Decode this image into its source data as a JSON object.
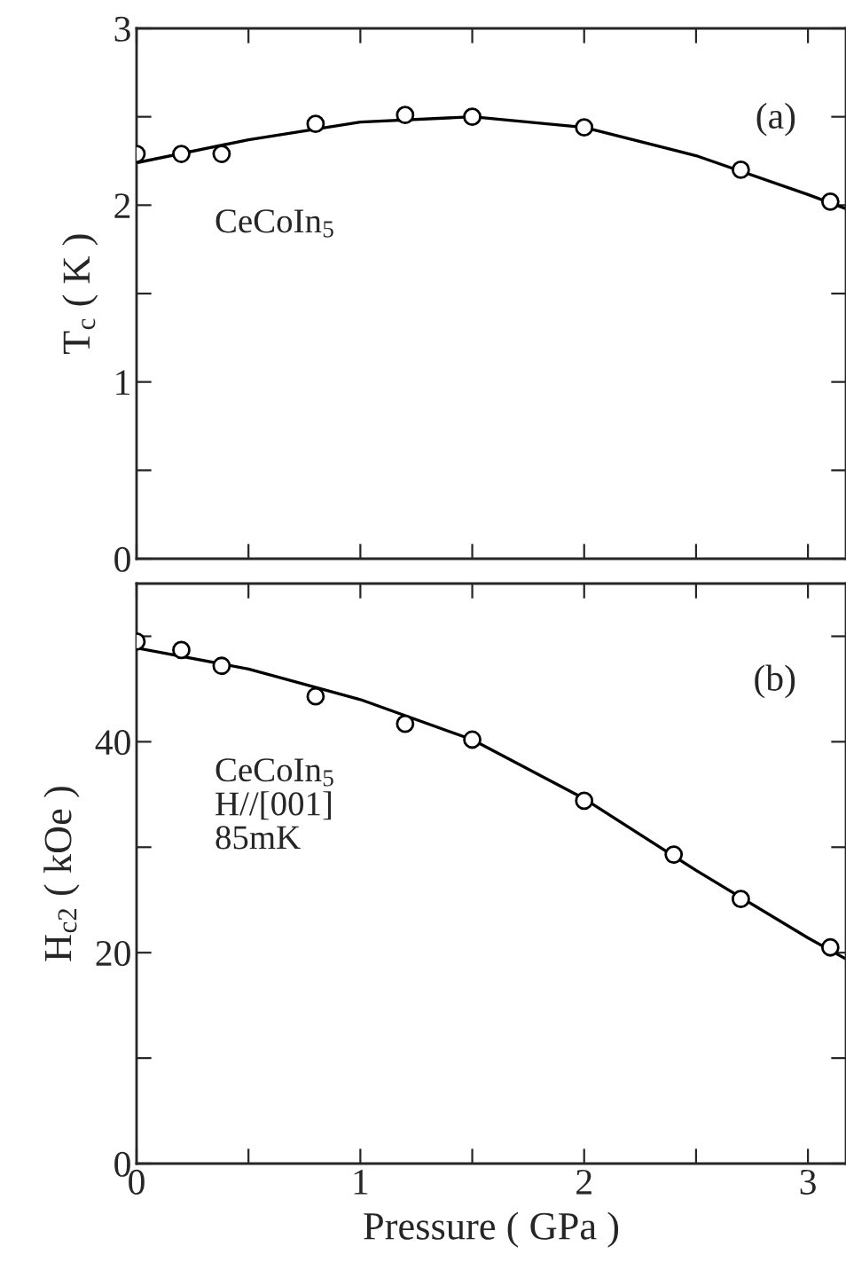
{
  "chart_data": [
    {
      "type": "scatter",
      "ylabel": "T$_{c}$ ( K )",
      "annotations": [
        "(a)",
        "CeCoIn$_{5}$"
      ],
      "xlim": [
        0,
        3.17
      ],
      "xticks": [
        {
          "value": 0,
          "label": null
        },
        {
          "value": 0.5,
          "label": null
        },
        {
          "value": 1,
          "label": null
        },
        {
          "value": 1.5,
          "label": null
        },
        {
          "value": 2,
          "label": null
        },
        {
          "value": 2.5,
          "label": null
        },
        {
          "value": 3,
          "label": null
        }
      ],
      "ylim": [
        0,
        3
      ],
      "yticks": [
        0,
        {
          "value": 0.5,
          "label": null
        },
        1,
        {
          "value": 1.5,
          "label": null
        },
        2,
        {
          "value": 2.5,
          "label": null
        },
        3
      ],
      "tick_labels": "y",
      "grid": false,
      "legend": false,
      "series": [
        {
          "marker": "circle",
          "color": "#000000",
          "x": [
            0,
            0.2,
            0.38,
            0.8,
            1.2,
            1.5,
            2.0,
            2.7,
            3.1
          ],
          "values": [
            2.29,
            2.29,
            2.29,
            2.46,
            2.51,
            2.5,
            2.44,
            2.2,
            2.02
          ]
        },
        {
          "type": "line",
          "line_style": "solid",
          "color": "#000000",
          "x": [
            0,
            0.5,
            1.0,
            1.5,
            2.0,
            2.5,
            3.0,
            3.17
          ],
          "values": [
            2.24,
            2.37,
            2.47,
            2.5,
            2.44,
            2.28,
            2.06,
            1.98
          ]
        }
      ]
    },
    {
      "type": "scatter",
      "xlabel": "Pressure ( GPa )",
      "ylabel": "H$_{c2}$ ( kOe )",
      "annotations": [
        "(b)",
        "CeCoIn$_{5}$\nH//[001]\n85mK"
      ],
      "xlim": [
        0,
        3.17
      ],
      "xticks": [
        0,
        {
          "value": 0.5,
          "label": null
        },
        1,
        {
          "value": 1.5,
          "label": null
        },
        2,
        {
          "value": 2.5,
          "label": null
        },
        3
      ],
      "ylim": [
        0,
        55
      ],
      "yticks": [
        0,
        {
          "value": 10,
          "label": null
        },
        20,
        {
          "value": 30,
          "label": null
        },
        40,
        {
          "value": 50,
          "label": null
        }
      ],
      "grid": false,
      "legend": false,
      "series": [
        {
          "marker": "circle",
          "color": "#000000",
          "x": [
            0,
            0.2,
            0.38,
            0.8,
            1.2,
            1.5,
            2.0,
            2.4,
            2.7,
            3.1
          ],
          "values": [
            49.5,
            48.7,
            47.2,
            44.3,
            41.7,
            40.2,
            34.4,
            29.3,
            25.1,
            20.5
          ]
        },
        {
          "type": "line",
          "line_style": "solid",
          "color": "#000000",
          "x": [
            0,
            0.5,
            1.0,
            1.5,
            2.0,
            2.5,
            3.0,
            3.17
          ],
          "values": [
            48.9,
            46.9,
            44.0,
            40.2,
            34.6,
            27.8,
            21.4,
            19.4
          ]
        }
      ]
    }
  ]
}
